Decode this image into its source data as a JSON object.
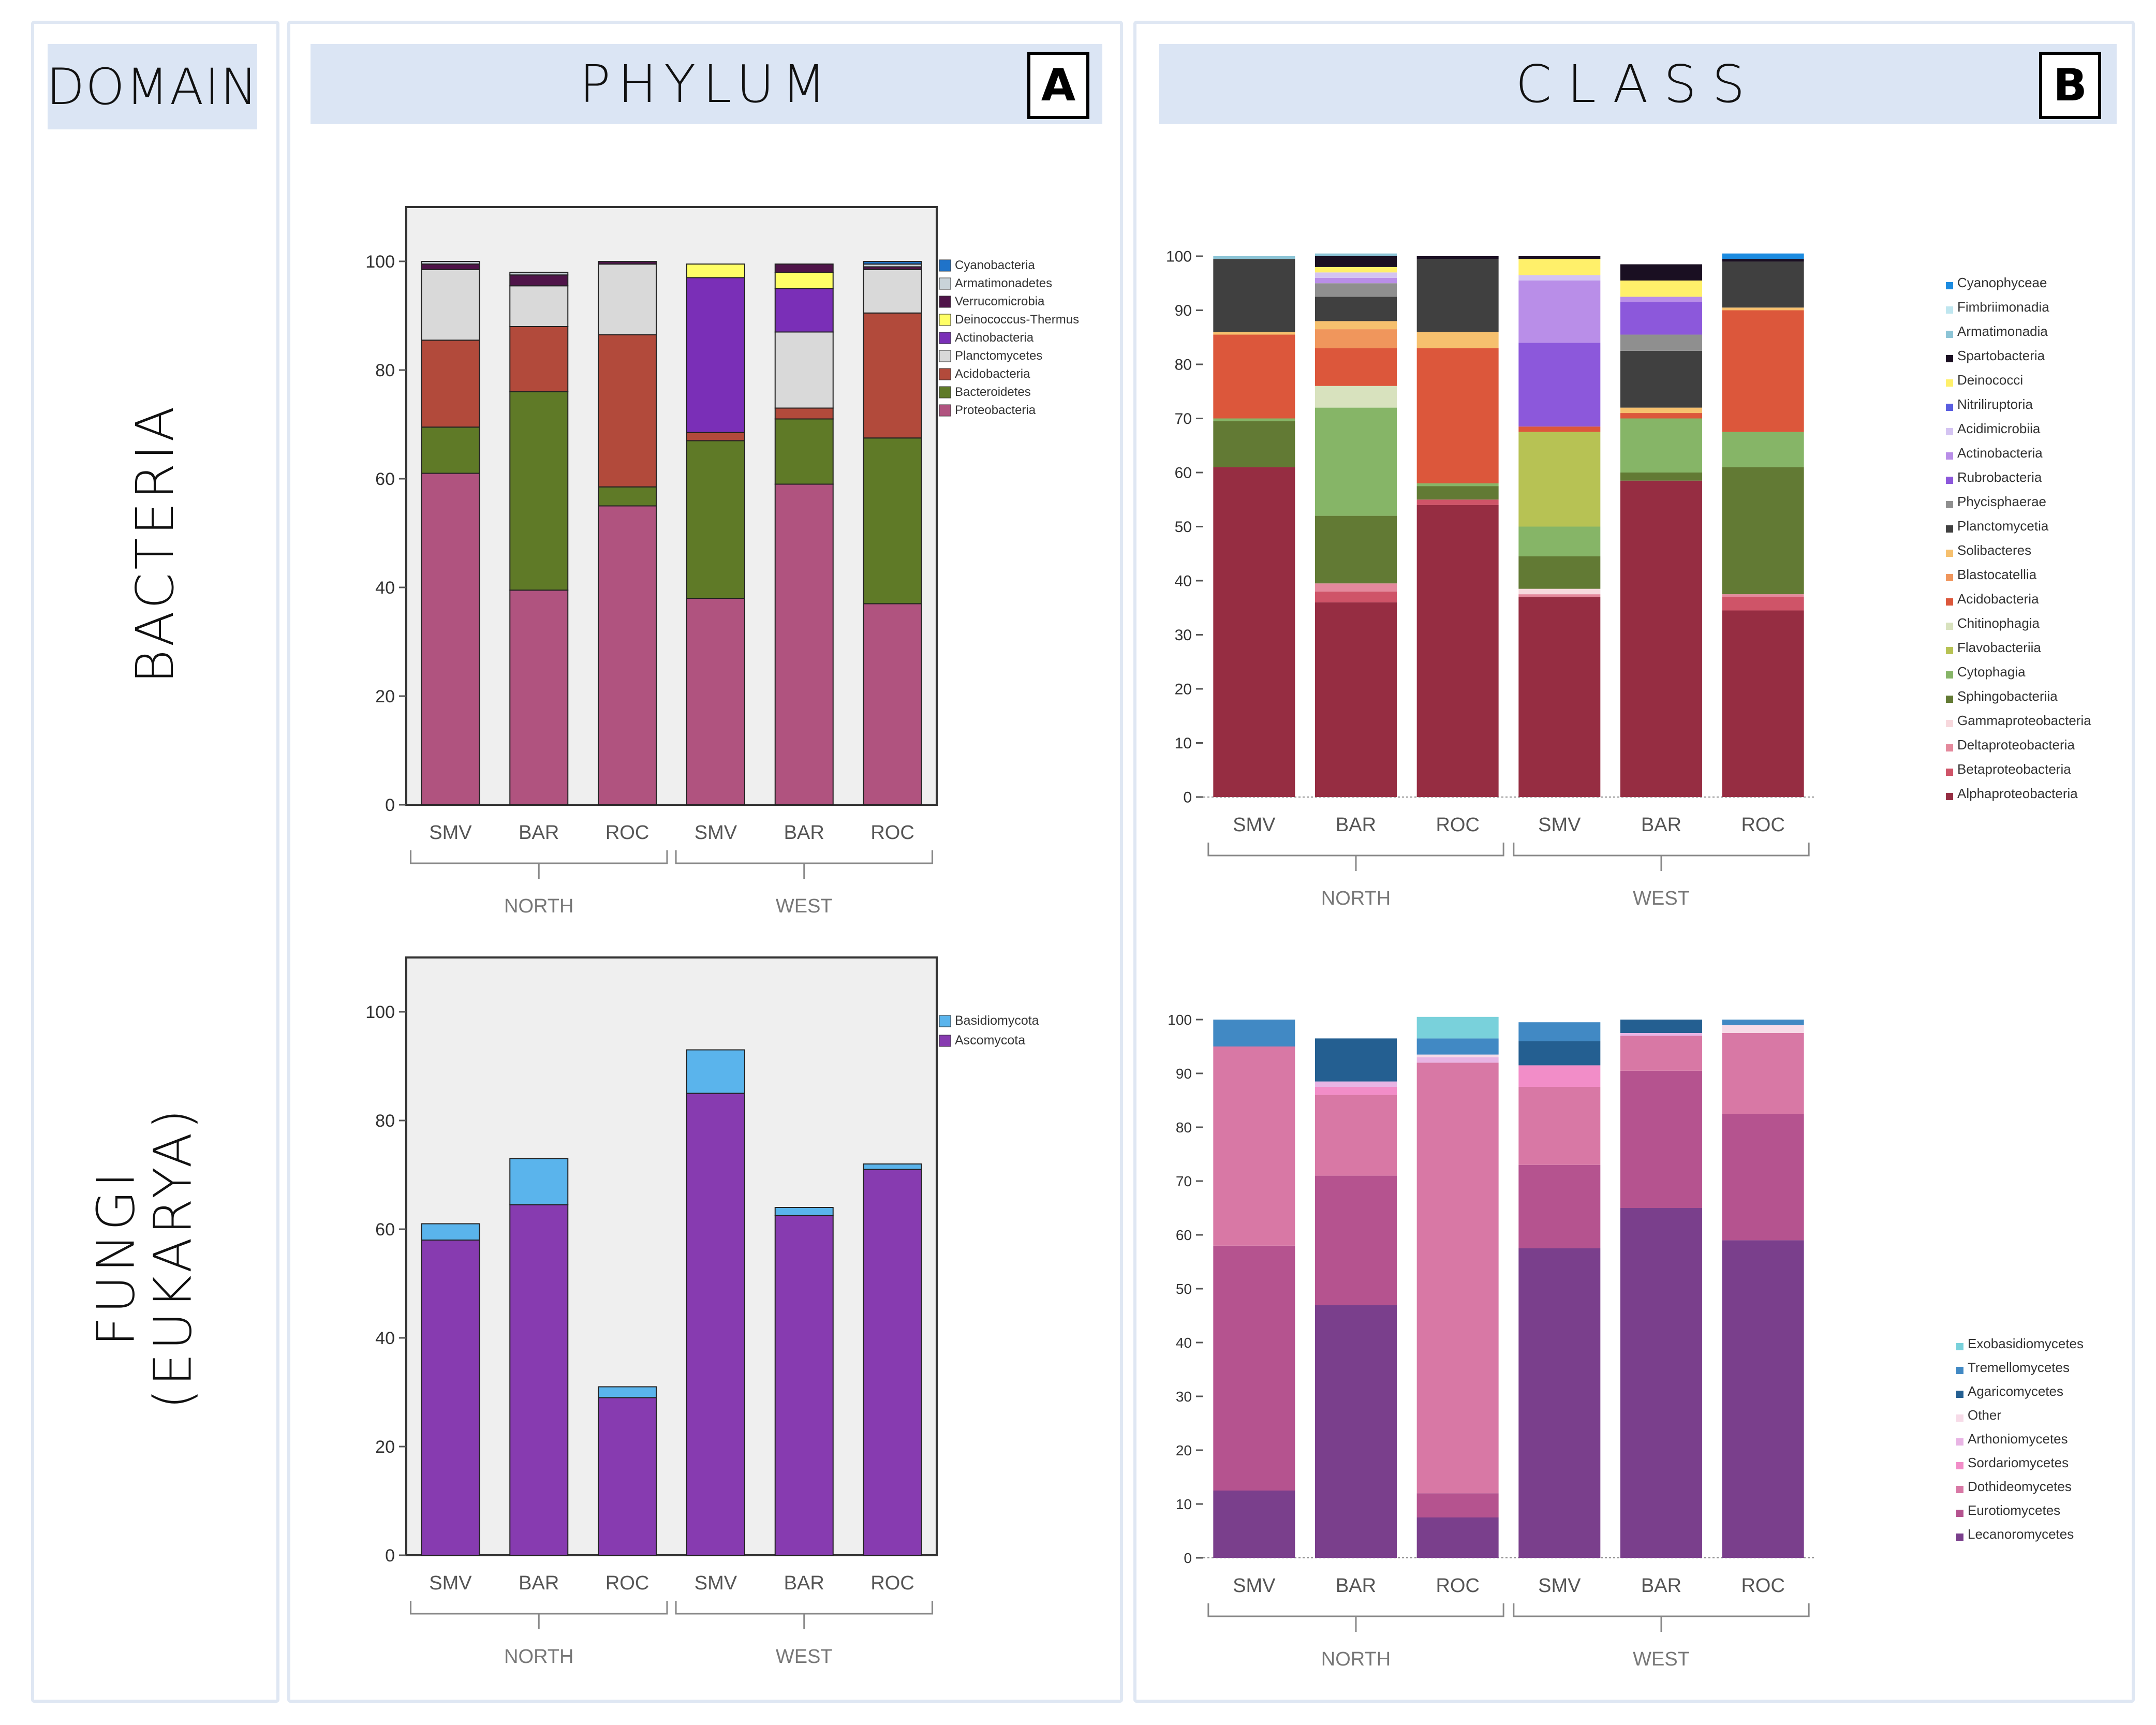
{
  "headers": {
    "domain": "DOMAIN",
    "phylum": "PHYLUM",
    "class": "CLASS",
    "badge_a": "A",
    "badge_b": "B"
  },
  "rows": {
    "bacteria": "BACTERIA",
    "fungi_line1": "FUNGI",
    "fungi_line2": "(EUKARYA)"
  },
  "chart_data": [
    {
      "id": "phylum-bacteria",
      "type": "bar",
      "stacked": true,
      "categories": [
        "SMV",
        "BAR",
        "ROC",
        "SMV",
        "BAR",
        "ROC"
      ],
      "groups": [
        {
          "label": "NORTH",
          "from": 0,
          "to": 2
        },
        {
          "label": "WEST",
          "from": 3,
          "to": 5
        }
      ],
      "ylim": [
        0,
        110
      ],
      "yticks": [
        0,
        20,
        40,
        60,
        80,
        100
      ],
      "frame": true,
      "background": "#efefef",
      "legend_position": "right",
      "series": [
        {
          "name": "Proteobacteria",
          "color": "#b0537f",
          "values": [
            61,
            39.5,
            55,
            38,
            59,
            37
          ]
        },
        {
          "name": "Bacteroidetes",
          "color": "#5f7a27",
          "values": [
            8.5,
            36.5,
            3.5,
            29,
            12,
            30.5
          ]
        },
        {
          "name": "Acidobacteria",
          "color": "#b24a3b",
          "values": [
            16,
            12,
            28,
            1.5,
            2,
            23
          ]
        },
        {
          "name": "Planctomycetes",
          "color": "#d9d9d9",
          "values": [
            13,
            7.5,
            13,
            0,
            14,
            8
          ]
        },
        {
          "name": "Actinobacteria",
          "color": "#7a2fb7",
          "values": [
            0,
            0,
            0,
            28.5,
            8,
            0
          ]
        },
        {
          "name": "Deinococcus-Thermus",
          "color": "#ffff66",
          "values": [
            0,
            0,
            0,
            2.5,
            3,
            0
          ]
        },
        {
          "name": "Verrucomicrobia",
          "color": "#4f1449",
          "values": [
            1,
            2,
            0.5,
            0,
            1.5,
            0.5
          ]
        },
        {
          "name": "Armatimonadetes",
          "color": "#c9d3d9",
          "values": [
            0.5,
            0.5,
            0,
            0,
            0,
            0.5
          ]
        },
        {
          "name": "Cyanobacteria",
          "color": "#1f73c9",
          "values": [
            0,
            0,
            0,
            0,
            0,
            0.5
          ]
        }
      ]
    },
    {
      "id": "class-bacteria",
      "type": "bar",
      "stacked": true,
      "categories": [
        "SMV",
        "BAR",
        "ROC",
        "SMV",
        "BAR",
        "ROC"
      ],
      "groups": [
        {
          "label": "NORTH",
          "from": 0,
          "to": 2
        },
        {
          "label": "WEST",
          "from": 3,
          "to": 5
        }
      ],
      "ylim": [
        0,
        100
      ],
      "yticks": [
        0,
        10,
        20,
        30,
        40,
        50,
        60,
        70,
        80,
        90,
        100
      ],
      "frame": false,
      "background": "#ffffff",
      "legend_position": "right",
      "series": [
        {
          "name": "Alphaproteobacteria",
          "color": "#962d42",
          "values": [
            61,
            36,
            54,
            37,
            58.5,
            34.5
          ]
        },
        {
          "name": "Betaproteobacteria",
          "color": "#cf5468",
          "values": [
            0,
            2,
            1,
            0,
            0,
            2.5
          ]
        },
        {
          "name": "Deltaproteobacteria",
          "color": "#e4899c",
          "values": [
            0,
            1.5,
            0,
            0.5,
            0,
            0.5
          ]
        },
        {
          "name": "Gammaproteobacteria",
          "color": "#f7d8dd",
          "values": [
            0,
            0,
            0,
            1,
            0,
            0
          ]
        },
        {
          "name": "Sphingobacteriia",
          "color": "#627a34",
          "values": [
            8.5,
            12.5,
            2.5,
            6,
            1.5,
            23.5
          ]
        },
        {
          "name": "Cytophagia",
          "color": "#86b567",
          "values": [
            0.5,
            20,
            0.5,
            5.5,
            10,
            6.5
          ]
        },
        {
          "name": "Flavobacteriia",
          "color": "#b7c254",
          "values": [
            0,
            0,
            0,
            17.5,
            0,
            0
          ]
        },
        {
          "name": "Chitinophagia",
          "color": "#d8e2be",
          "values": [
            0,
            4,
            0,
            0,
            0,
            0
          ]
        },
        {
          "name": "Acidobacteria",
          "color": "#dc573b",
          "values": [
            15.5,
            7,
            25,
            1,
            1,
            22.5
          ]
        },
        {
          "name": "Blastocatellia",
          "color": "#f0965c",
          "values": [
            0,
            3.5,
            0,
            0,
            0,
            0
          ]
        },
        {
          "name": "Solibacteres",
          "color": "#f6c06e",
          "values": [
            0.5,
            1.5,
            3,
            0,
            1,
            0.5
          ]
        },
        {
          "name": "Planctomycetia",
          "color": "#404040",
          "values": [
            13.5,
            4.5,
            13.5,
            0,
            10.5,
            8.5
          ]
        },
        {
          "name": "Phycisphaerae",
          "color": "#8f8f8f",
          "values": [
            0,
            2.5,
            0,
            0,
            3,
            0
          ]
        },
        {
          "name": "Rubrobacteria",
          "color": "#8c58db",
          "values": [
            0,
            0,
            0,
            15.5,
            6,
            0
          ]
        },
        {
          "name": "Actinobacteria",
          "color": "#b98ee8",
          "values": [
            0,
            1,
            0,
            11.5,
            1,
            0
          ]
        },
        {
          "name": "Acidimicrobiia",
          "color": "#d4c4f2",
          "values": [
            0,
            1,
            0,
            1,
            0,
            0
          ]
        },
        {
          "name": "Nitriliruptoria",
          "color": "#5a5ee0",
          "values": [
            0,
            0,
            0,
            0,
            0,
            0
          ]
        },
        {
          "name": "Deinococci",
          "color": "#fff06a",
          "values": [
            0,
            1,
            0,
            3,
            3,
            0
          ]
        },
        {
          "name": "Spartobacteria",
          "color": "#1a0f22",
          "values": [
            0,
            2,
            0.5,
            0.5,
            3,
            0.5
          ]
        },
        {
          "name": "Armatimonadia",
          "color": "#8cc4d6",
          "values": [
            0.5,
            0.5,
            0,
            0,
            0,
            0
          ]
        },
        {
          "name": "Fimbriimonadia",
          "color": "#bfe6ef",
          "values": [
            0,
            0,
            0,
            0,
            0,
            0
          ]
        },
        {
          "name": "Cyanophyceae",
          "color": "#1c8be0",
          "values": [
            0,
            0,
            0,
            0,
            0,
            1
          ]
        }
      ]
    },
    {
      "id": "phylum-fungi",
      "type": "bar",
      "stacked": true,
      "categories": [
        "SMV",
        "BAR",
        "ROC",
        "SMV",
        "BAR",
        "ROC"
      ],
      "groups": [
        {
          "label": "NORTH",
          "from": 0,
          "to": 2
        },
        {
          "label": "WEST",
          "from": 3,
          "to": 5
        }
      ],
      "ylim": [
        0,
        110
      ],
      "yticks": [
        0,
        20,
        40,
        60,
        80,
        100
      ],
      "frame": true,
      "background": "#efefef",
      "legend_position": "right",
      "series": [
        {
          "name": "Ascomycota",
          "color": "#873bb0",
          "values": [
            58,
            64.5,
            29,
            85,
            62.5,
            71
          ]
        },
        {
          "name": "Basidiomycota",
          "color": "#5ab4ec",
          "values": [
            3,
            8.5,
            2,
            8,
            1.5,
            1
          ]
        }
      ]
    },
    {
      "id": "class-fungi",
      "type": "bar",
      "stacked": true,
      "categories": [
        "SMV",
        "BAR",
        "ROC",
        "SMV",
        "BAR",
        "ROC"
      ],
      "groups": [
        {
          "label": "NORTH",
          "from": 0,
          "to": 2
        },
        {
          "label": "WEST",
          "from": 3,
          "to": 5
        }
      ],
      "ylim": [
        0,
        100
      ],
      "yticks": [
        0,
        10,
        20,
        30,
        40,
        50,
        60,
        70,
        80,
        90,
        100
      ],
      "frame": false,
      "background": "#ffffff",
      "legend_position": "bottom-right",
      "series": [
        {
          "name": "Lecanoromycetes",
          "color": "#7a3f8c",
          "values": [
            12.5,
            47,
            7.5,
            57.5,
            65,
            59
          ]
        },
        {
          "name": "Eurotiomycetes",
          "color": "#b5538f",
          "values": [
            45.5,
            24,
            4.5,
            15.5,
            25.5,
            23.5
          ]
        },
        {
          "name": "Dothideomycetes",
          "color": "#d878a5",
          "values": [
            37,
            15,
            80,
            14.5,
            6.5,
            15
          ]
        },
        {
          "name": "Sordariomycetes",
          "color": "#f28dc8",
          "values": [
            0,
            1.5,
            0,
            4,
            0,
            0
          ]
        },
        {
          "name": "Arthoniomycetes",
          "color": "#e8b4e4",
          "values": [
            0,
            1,
            1,
            0,
            0.5,
            0
          ]
        },
        {
          "name": "Other",
          "color": "#f7dbe8",
          "values": [
            0,
            0,
            0.5,
            0,
            0,
            1.5
          ]
        },
        {
          "name": "Agaricomycetes",
          "color": "#245f91",
          "values": [
            0,
            8,
            0,
            4.5,
            2.5,
            0
          ]
        },
        {
          "name": "Tremellomycetes",
          "color": "#4189c4",
          "values": [
            5,
            0,
            3,
            3.5,
            0,
            1
          ]
        },
        {
          "name": "Exobasidiomycetes",
          "color": "#79d1db",
          "values": [
            0,
            0,
            4,
            0,
            0,
            0
          ]
        }
      ]
    }
  ]
}
